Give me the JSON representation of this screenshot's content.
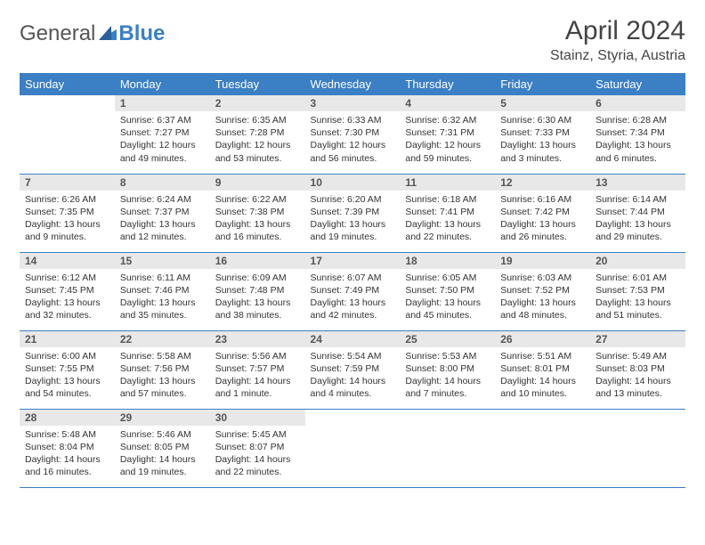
{
  "logo": {
    "text1": "General",
    "text2": "Blue"
  },
  "title": "April 2024",
  "location": "Stainz, Styria, Austria",
  "colors": {
    "header_bg": "#3b7fc4",
    "header_text": "#ffffff",
    "daynum_bg": "#e8e8e8",
    "cell_border": "#3b7fc4"
  },
  "weekdays": [
    "Sunday",
    "Monday",
    "Tuesday",
    "Wednesday",
    "Thursday",
    "Friday",
    "Saturday"
  ],
  "weeks": [
    [
      {
        "n": "",
        "sunrise": "",
        "sunset": "",
        "daylight": ""
      },
      {
        "n": "1",
        "sunrise": "Sunrise: 6:37 AM",
        "sunset": "Sunset: 7:27 PM",
        "daylight": "Daylight: 12 hours and 49 minutes."
      },
      {
        "n": "2",
        "sunrise": "Sunrise: 6:35 AM",
        "sunset": "Sunset: 7:28 PM",
        "daylight": "Daylight: 12 hours and 53 minutes."
      },
      {
        "n": "3",
        "sunrise": "Sunrise: 6:33 AM",
        "sunset": "Sunset: 7:30 PM",
        "daylight": "Daylight: 12 hours and 56 minutes."
      },
      {
        "n": "4",
        "sunrise": "Sunrise: 6:32 AM",
        "sunset": "Sunset: 7:31 PM",
        "daylight": "Daylight: 12 hours and 59 minutes."
      },
      {
        "n": "5",
        "sunrise": "Sunrise: 6:30 AM",
        "sunset": "Sunset: 7:33 PM",
        "daylight": "Daylight: 13 hours and 3 minutes."
      },
      {
        "n": "6",
        "sunrise": "Sunrise: 6:28 AM",
        "sunset": "Sunset: 7:34 PM",
        "daylight": "Daylight: 13 hours and 6 minutes."
      }
    ],
    [
      {
        "n": "7",
        "sunrise": "Sunrise: 6:26 AM",
        "sunset": "Sunset: 7:35 PM",
        "daylight": "Daylight: 13 hours and 9 minutes."
      },
      {
        "n": "8",
        "sunrise": "Sunrise: 6:24 AM",
        "sunset": "Sunset: 7:37 PM",
        "daylight": "Daylight: 13 hours and 12 minutes."
      },
      {
        "n": "9",
        "sunrise": "Sunrise: 6:22 AM",
        "sunset": "Sunset: 7:38 PM",
        "daylight": "Daylight: 13 hours and 16 minutes."
      },
      {
        "n": "10",
        "sunrise": "Sunrise: 6:20 AM",
        "sunset": "Sunset: 7:39 PM",
        "daylight": "Daylight: 13 hours and 19 minutes."
      },
      {
        "n": "11",
        "sunrise": "Sunrise: 6:18 AM",
        "sunset": "Sunset: 7:41 PM",
        "daylight": "Daylight: 13 hours and 22 minutes."
      },
      {
        "n": "12",
        "sunrise": "Sunrise: 6:16 AM",
        "sunset": "Sunset: 7:42 PM",
        "daylight": "Daylight: 13 hours and 26 minutes."
      },
      {
        "n": "13",
        "sunrise": "Sunrise: 6:14 AM",
        "sunset": "Sunset: 7:44 PM",
        "daylight": "Daylight: 13 hours and 29 minutes."
      }
    ],
    [
      {
        "n": "14",
        "sunrise": "Sunrise: 6:12 AM",
        "sunset": "Sunset: 7:45 PM",
        "daylight": "Daylight: 13 hours and 32 minutes."
      },
      {
        "n": "15",
        "sunrise": "Sunrise: 6:11 AM",
        "sunset": "Sunset: 7:46 PM",
        "daylight": "Daylight: 13 hours and 35 minutes."
      },
      {
        "n": "16",
        "sunrise": "Sunrise: 6:09 AM",
        "sunset": "Sunset: 7:48 PM",
        "daylight": "Daylight: 13 hours and 38 minutes."
      },
      {
        "n": "17",
        "sunrise": "Sunrise: 6:07 AM",
        "sunset": "Sunset: 7:49 PM",
        "daylight": "Daylight: 13 hours and 42 minutes."
      },
      {
        "n": "18",
        "sunrise": "Sunrise: 6:05 AM",
        "sunset": "Sunset: 7:50 PM",
        "daylight": "Daylight: 13 hours and 45 minutes."
      },
      {
        "n": "19",
        "sunrise": "Sunrise: 6:03 AM",
        "sunset": "Sunset: 7:52 PM",
        "daylight": "Daylight: 13 hours and 48 minutes."
      },
      {
        "n": "20",
        "sunrise": "Sunrise: 6:01 AM",
        "sunset": "Sunset: 7:53 PM",
        "daylight": "Daylight: 13 hours and 51 minutes."
      }
    ],
    [
      {
        "n": "21",
        "sunrise": "Sunrise: 6:00 AM",
        "sunset": "Sunset: 7:55 PM",
        "daylight": "Daylight: 13 hours and 54 minutes."
      },
      {
        "n": "22",
        "sunrise": "Sunrise: 5:58 AM",
        "sunset": "Sunset: 7:56 PM",
        "daylight": "Daylight: 13 hours and 57 minutes."
      },
      {
        "n": "23",
        "sunrise": "Sunrise: 5:56 AM",
        "sunset": "Sunset: 7:57 PM",
        "daylight": "Daylight: 14 hours and 1 minute."
      },
      {
        "n": "24",
        "sunrise": "Sunrise: 5:54 AM",
        "sunset": "Sunset: 7:59 PM",
        "daylight": "Daylight: 14 hours and 4 minutes."
      },
      {
        "n": "25",
        "sunrise": "Sunrise: 5:53 AM",
        "sunset": "Sunset: 8:00 PM",
        "daylight": "Daylight: 14 hours and 7 minutes."
      },
      {
        "n": "26",
        "sunrise": "Sunrise: 5:51 AM",
        "sunset": "Sunset: 8:01 PM",
        "daylight": "Daylight: 14 hours and 10 minutes."
      },
      {
        "n": "27",
        "sunrise": "Sunrise: 5:49 AM",
        "sunset": "Sunset: 8:03 PM",
        "daylight": "Daylight: 14 hours and 13 minutes."
      }
    ],
    [
      {
        "n": "28",
        "sunrise": "Sunrise: 5:48 AM",
        "sunset": "Sunset: 8:04 PM",
        "daylight": "Daylight: 14 hours and 16 minutes."
      },
      {
        "n": "29",
        "sunrise": "Sunrise: 5:46 AM",
        "sunset": "Sunset: 8:05 PM",
        "daylight": "Daylight: 14 hours and 19 minutes."
      },
      {
        "n": "30",
        "sunrise": "Sunrise: 5:45 AM",
        "sunset": "Sunset: 8:07 PM",
        "daylight": "Daylight: 14 hours and 22 minutes."
      },
      {
        "n": "",
        "sunrise": "",
        "sunset": "",
        "daylight": ""
      },
      {
        "n": "",
        "sunrise": "",
        "sunset": "",
        "daylight": ""
      },
      {
        "n": "",
        "sunrise": "",
        "sunset": "",
        "daylight": ""
      },
      {
        "n": "",
        "sunrise": "",
        "sunset": "",
        "daylight": ""
      }
    ]
  ]
}
